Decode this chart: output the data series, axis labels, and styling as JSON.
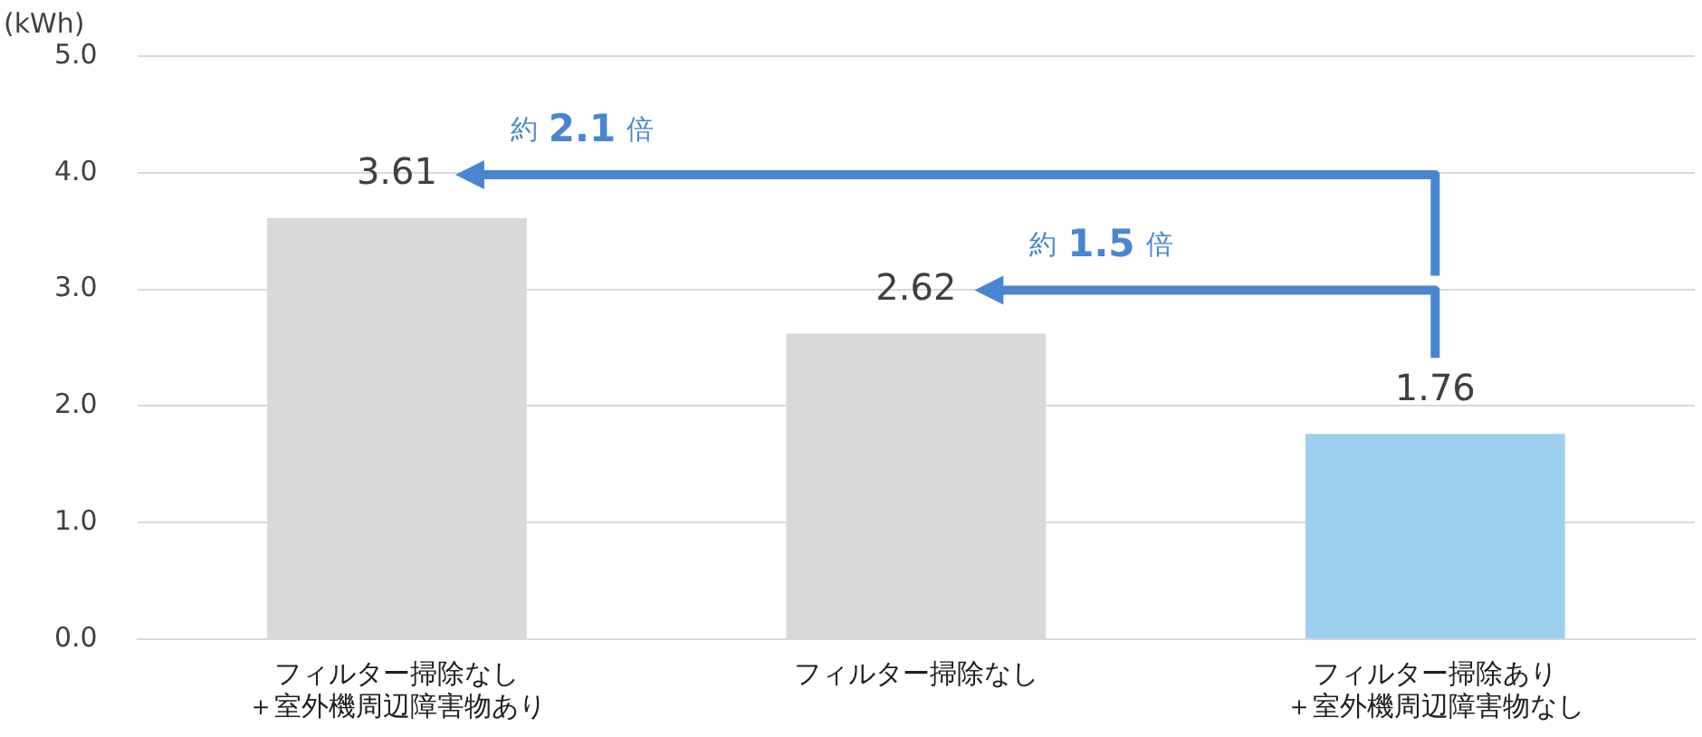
{
  "chart_data": {
    "type": "bar",
    "ylabel": "(kWh)",
    "categories": [
      "フィルター掃除なし＋室外機周辺障害物あり",
      "フィルター掃除なし",
      "フィルター掃除あり＋室外機周辺障害物なし"
    ],
    "values": [
      3.61,
      2.62,
      1.76
    ],
    "colors": [
      "#d9d9d9",
      "#d9d9d9",
      "#9dcfee"
    ],
    "ylim": [
      0,
      5
    ],
    "yticks": [
      {
        "value": 0,
        "label": "0.0"
      },
      {
        "value": 1,
        "label": "1.0"
      },
      {
        "value": 2,
        "label": "2.0"
      },
      {
        "value": 3,
        "label": "3.0"
      },
      {
        "value": 4,
        "label": "4.0"
      },
      {
        "value": 5,
        "label": "5.0"
      }
    ],
    "grid": "y",
    "legend": false,
    "data_labels": true,
    "annotations": [
      "約 2.1 倍",
      "約 1.5 倍"
    ]
  }
}
